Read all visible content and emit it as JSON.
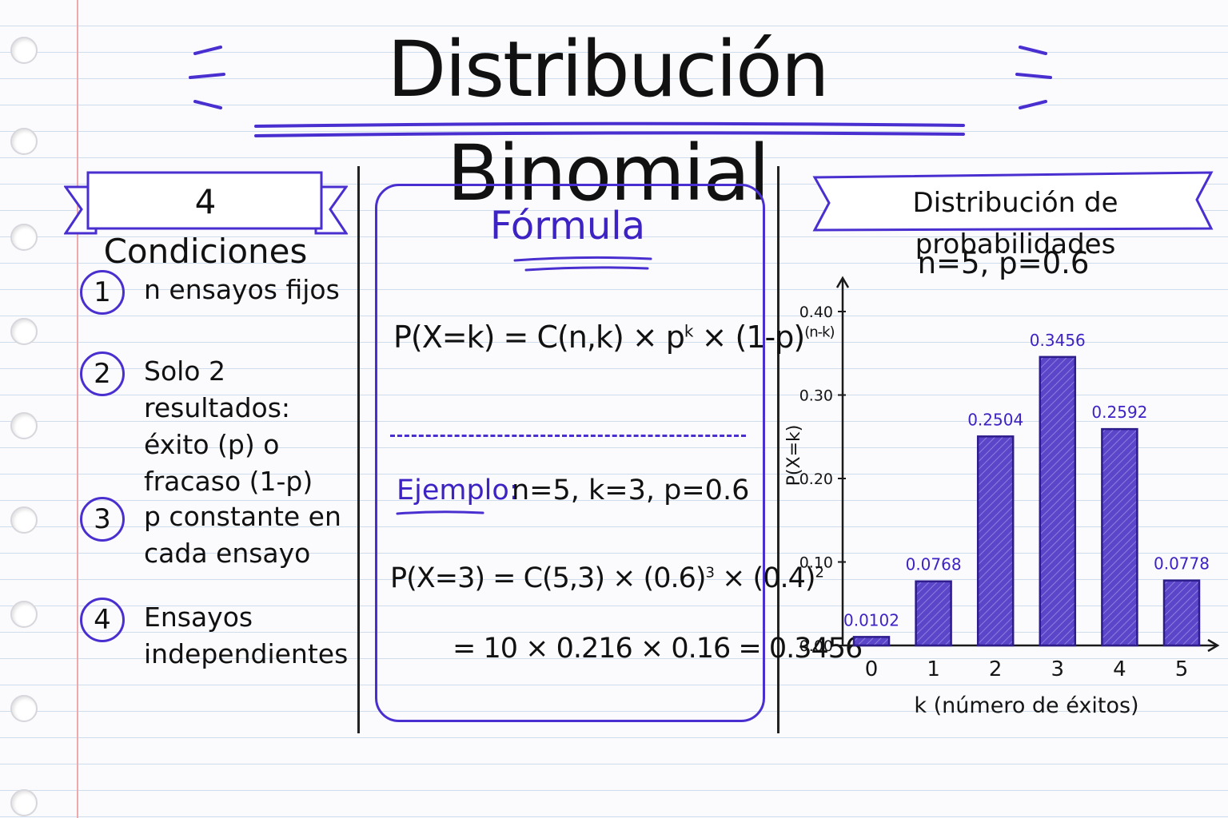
{
  "title": "Distribución Binomial",
  "conditions": {
    "heading": "4 Condiciones",
    "items": [
      {
        "num": "1",
        "text": "n ensayos fijos"
      },
      {
        "num": "2",
        "text": "Solo 2 resultados: éxito (p) o fracaso (1-p)"
      },
      {
        "num": "3",
        "text": "p constante en cada ensayo"
      },
      {
        "num": "4",
        "text": "Ensayos independientes"
      }
    ]
  },
  "formula": {
    "heading": "Fórmula",
    "main": {
      "lhs": "P(X=k) = C(n,k) × p",
      "exp1": "k",
      "mid": " × (1-p)",
      "exp2": "(n-k)"
    },
    "example_label": "Ejemplo:",
    "example_params": "n=5,  k=3,  p=0.6",
    "example_line": {
      "part1": "P(X=3) = C(5,3) × (0.6)",
      "exp1": "3",
      "part2": " × (0.4)",
      "exp2": "2"
    },
    "result_line": "= 10 × 0.216 × 0.16 = 0.3456"
  },
  "colors": {
    "accent": "#4a2fd0",
    "ink": "#151515",
    "bar_fill": "#5b45c8"
  },
  "chart_data": {
    "type": "bar",
    "title": "Distribución de probabilidades",
    "subtitle": "n=5,  p=0.6",
    "xlabel": "k (número de éxitos)",
    "ylabel": "P(X=k)",
    "categories": [
      "0",
      "1",
      "2",
      "3",
      "4",
      "5"
    ],
    "values": [
      0.0102,
      0.0768,
      0.2504,
      0.3456,
      0.2592,
      0.0778
    ],
    "value_labels": [
      "0.0102",
      "0.0768",
      "0.2504",
      "0.3456",
      "0.2592",
      "0.0778"
    ],
    "yticks": [
      "0.00",
      "0.10",
      "0.20",
      "0.30",
      "0.40"
    ],
    "ylim": [
      0,
      0.4
    ],
    "grid": false,
    "legend": "none"
  }
}
